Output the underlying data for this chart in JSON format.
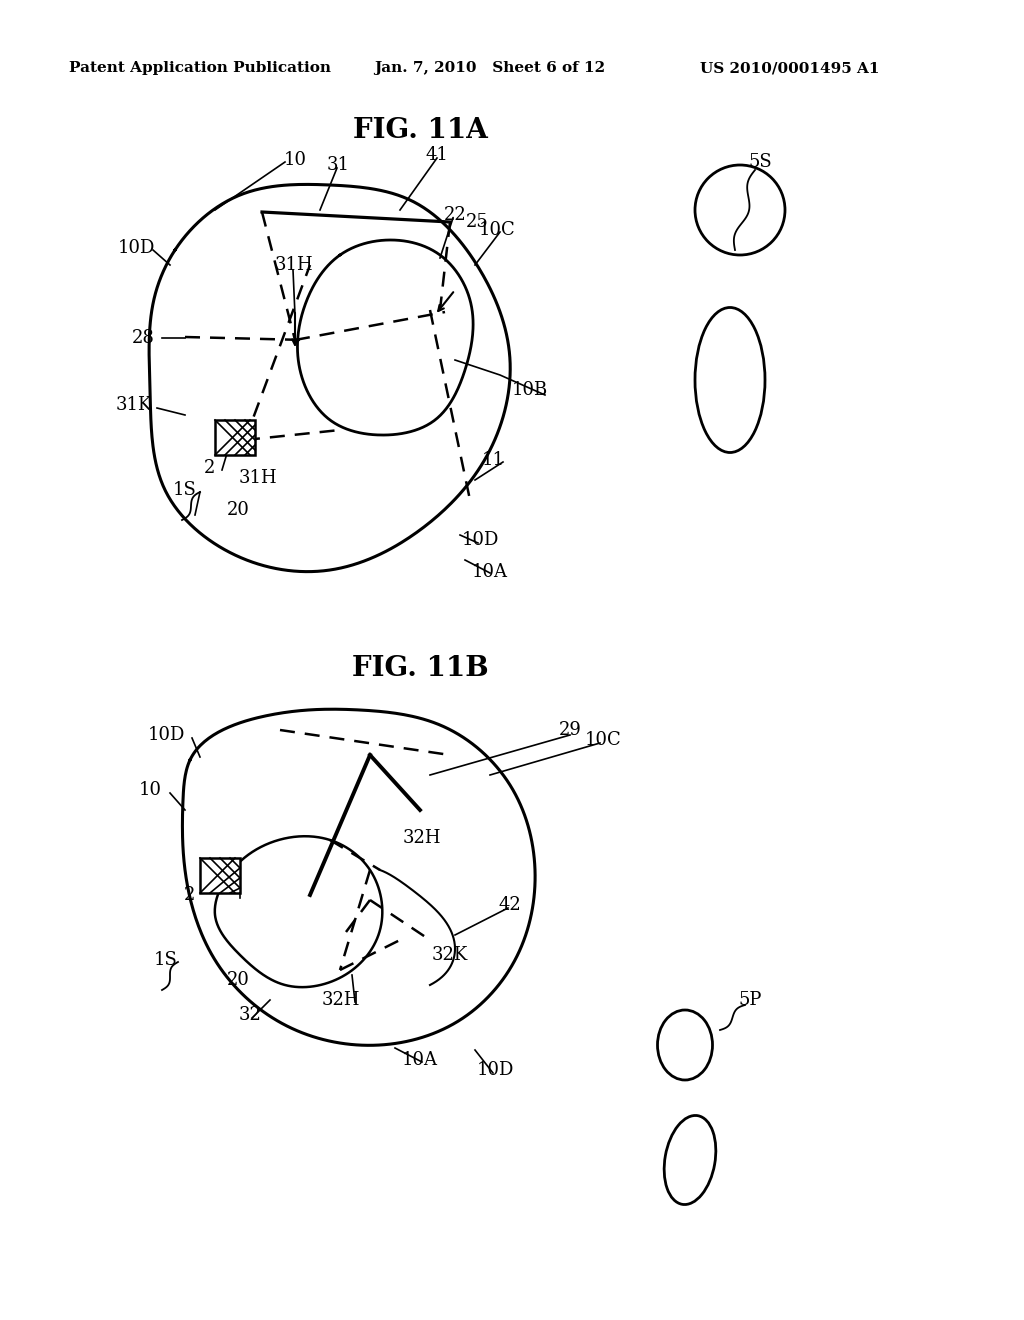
{
  "bg_color": "#ffffff",
  "header_left": "Patent Application Publication",
  "header_mid": "Jan. 7, 2010   Sheet 6 of 12",
  "header_right": "US 2010/0001495 A1",
  "fig11a_title": "FIG. 11A",
  "fig11b_title": "FIG. 11B",
  "line_color": "#000000",
  "line_width": 1.8,
  "dash_pattern": [
    6,
    4
  ],
  "font_size_header": 11,
  "font_size_label": 13,
  "font_size_title": 20
}
